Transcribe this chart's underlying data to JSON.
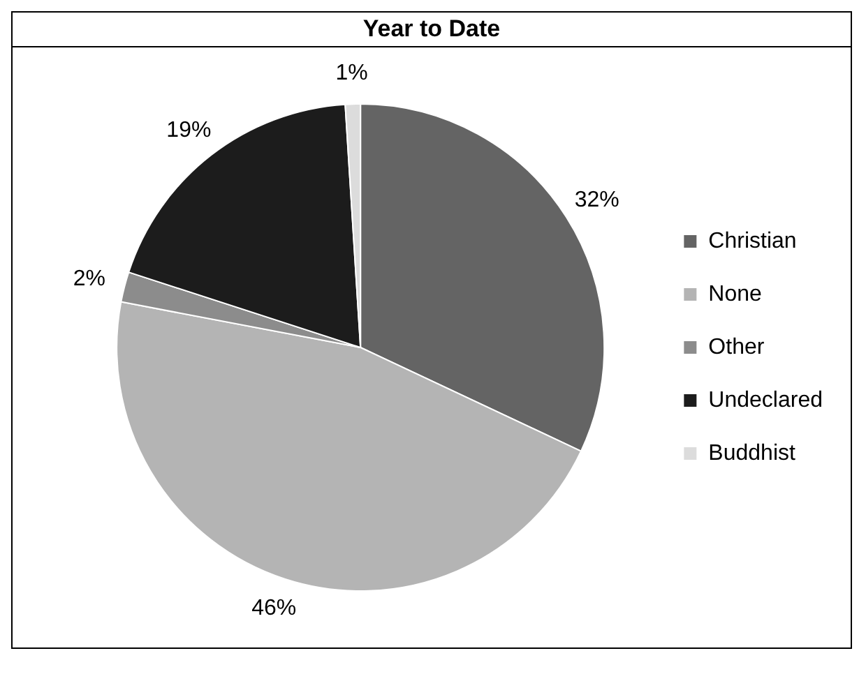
{
  "chart_data": {
    "type": "pie",
    "title": "Year to Date",
    "categories": [
      "Christian",
      "None",
      "Other",
      "Undeclared",
      "Buddhist"
    ],
    "values": [
      32,
      46,
      2,
      19,
      1
    ],
    "colors": [
      "#646464",
      "#b4b4b4",
      "#8c8c8c",
      "#1c1c1c",
      "#dcdcdc"
    ],
    "value_labels": [
      "32%",
      "46%",
      "2%",
      "19%",
      "1%"
    ],
    "legend": "right"
  }
}
